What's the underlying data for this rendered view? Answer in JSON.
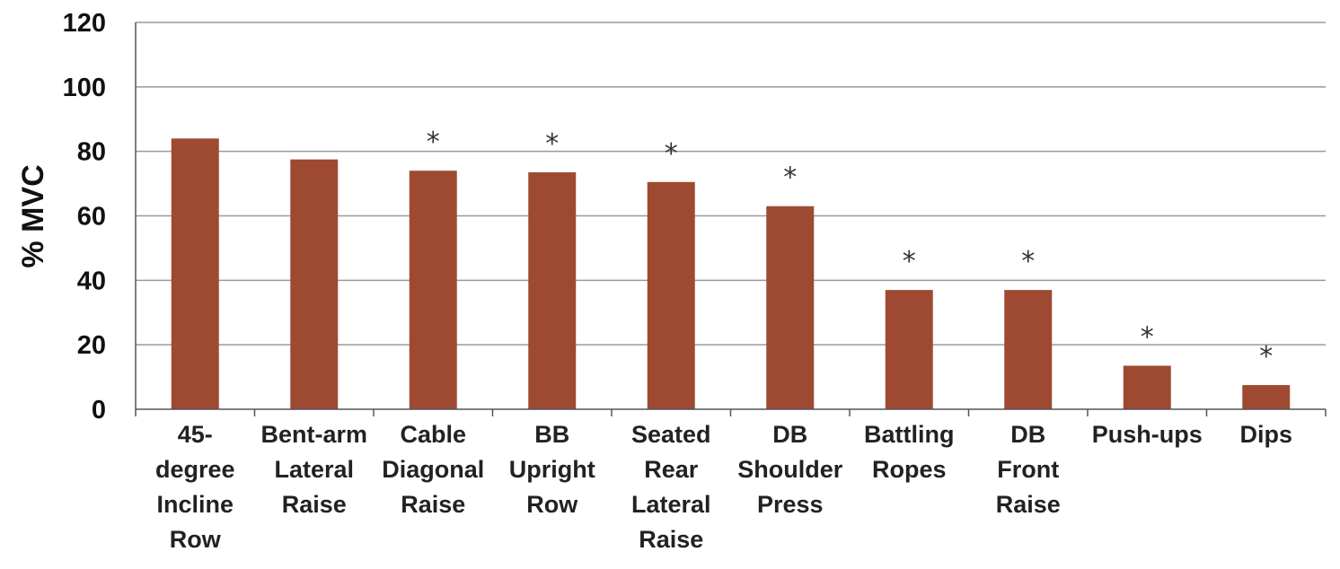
{
  "chart_data": {
    "type": "bar",
    "title": "",
    "xlabel": "",
    "ylabel": "% MVC",
    "ylim": [
      0,
      120
    ],
    "yticks": [
      "0",
      "20",
      "40",
      "60",
      "80",
      "100",
      "120"
    ],
    "grid": true,
    "legend": "none",
    "categories": [
      [
        "45-",
        "degree",
        "Incline",
        "Row"
      ],
      [
        "Bent-arm",
        "Lateral",
        "Raise"
      ],
      [
        "Cable",
        "Diagonal",
        "Raise"
      ],
      [
        "BB",
        "Upright",
        "Row"
      ],
      [
        "Seated",
        "Rear",
        "Lateral",
        "Raise"
      ],
      [
        "DB",
        "Shoulder",
        "Press"
      ],
      [
        "Battling",
        "Ropes"
      ],
      [
        "DB",
        "Front",
        "Raise"
      ],
      [
        "Push-ups"
      ],
      [
        "Dips"
      ]
    ],
    "values": [
      84,
      77.5,
      74,
      73.5,
      70.5,
      63,
      37,
      37,
      13.5,
      7.5
    ],
    "significance": [
      "",
      "",
      "*",
      "*",
      "*",
      "*",
      "*",
      "*",
      "*",
      "*"
    ],
    "colors": {
      "bar": "#9E4A32",
      "grid": "#9a9a9a",
      "axis": "#555555"
    }
  }
}
